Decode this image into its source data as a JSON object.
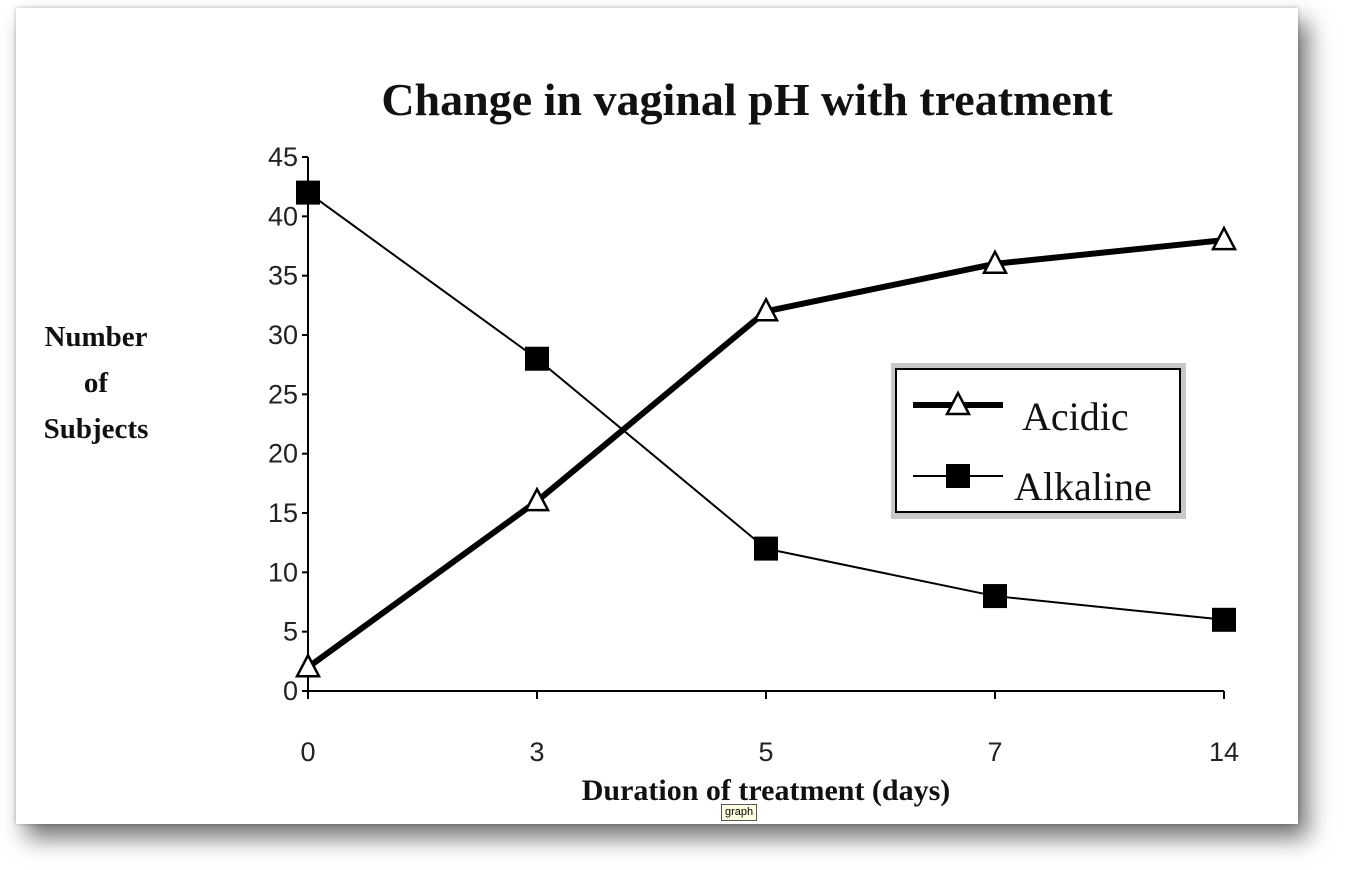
{
  "tooltip": "graph",
  "chart_data": {
    "type": "line",
    "title": "Change in vaginal pH with treatment",
    "ylabel_lines": [
      "Number",
      "of",
      "Subjects"
    ],
    "xlabel": "Duration of treatment (days)",
    "categories": [
      "0",
      "3",
      "5",
      "7",
      "14"
    ],
    "y_ticks": [
      0,
      5,
      10,
      15,
      20,
      25,
      30,
      35,
      40,
      45
    ],
    "ylim": [
      0,
      45
    ],
    "grid": false,
    "legend_position": "right-middle",
    "series": [
      {
        "name": "Acidic",
        "marker": "open-triangle",
        "values": [
          2,
          16,
          32,
          36,
          38
        ],
        "color": "#000000"
      },
      {
        "name": "Alkaline",
        "marker": "filled-square",
        "values": [
          42,
          28,
          12,
          8,
          6
        ],
        "color": "#000000"
      }
    ]
  }
}
